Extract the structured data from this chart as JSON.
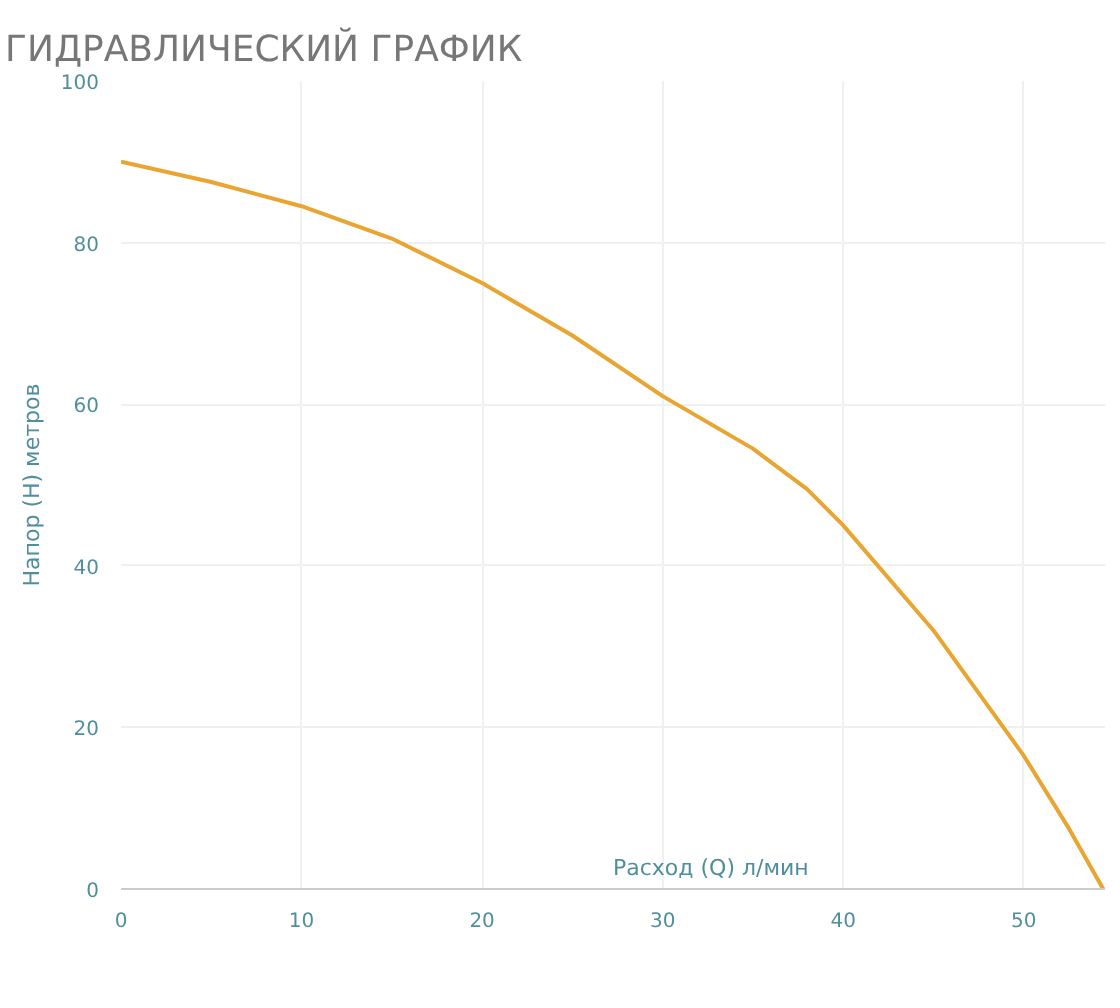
{
  "chart_data": {
    "type": "line",
    "title": "ГИДРАВЛИЧЕСКИЙ ГРАФИК",
    "xlabel": "Расход (Q) л/мин",
    "ylabel": "Напор (H) метров",
    "x": [
      0,
      5,
      10,
      15,
      20,
      25,
      30,
      35,
      38,
      40,
      45,
      50,
      52.5,
      54.4
    ],
    "series": [
      {
        "color": "#e8a531",
        "values": [
          90,
          87.5,
          84.5,
          80.5,
          75,
          68.5,
          61,
          54.5,
          49.5,
          45,
          32,
          16.5,
          7.5,
          0
        ]
      }
    ],
    "xlim": [
      0,
      54.5
    ],
    "ylim": [
      0,
      100
    ],
    "xticks": [
      0,
      10,
      20,
      30,
      40,
      50
    ],
    "yticks": [
      0,
      20,
      40,
      60,
      80,
      100
    ],
    "grid": true,
    "marker": "none",
    "line_style": "solid"
  }
}
